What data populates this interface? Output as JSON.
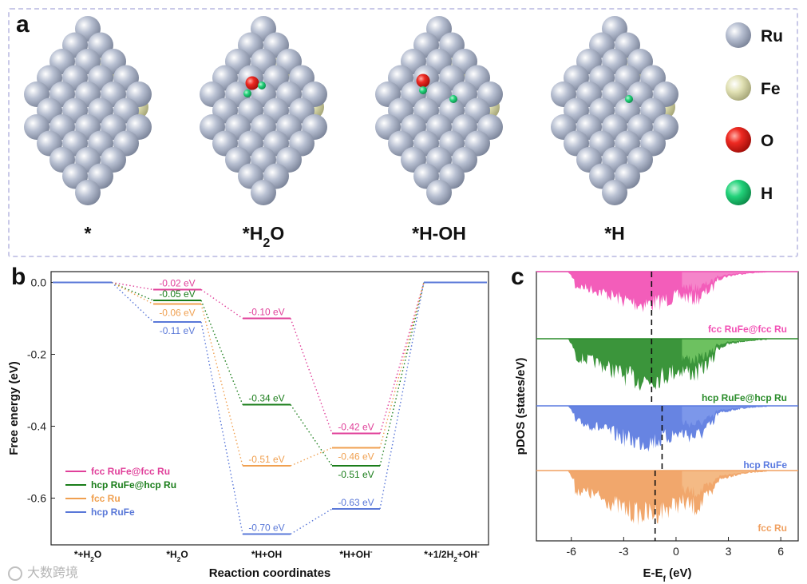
{
  "panel_a": {
    "letter": "a",
    "structures": [
      {
        "label_main": "*",
        "label_sub": ""
      },
      {
        "label_main": "*H",
        "label_sub": "2",
        "label_tail": "O"
      },
      {
        "label_main": "*H-OH",
        "label_sub": ""
      },
      {
        "label_main": "*H",
        "label_sub": ""
      }
    ],
    "legend": [
      {
        "label": "Ru",
        "color": "#9aa3b8"
      },
      {
        "label": "Fe",
        "color": "#d6d6a6"
      },
      {
        "label": "O",
        "color": "#e0201a"
      },
      {
        "label": "H",
        "color": "#1ec870"
      }
    ]
  },
  "panel_b": {
    "letter": "b",
    "chart_data": {
      "type": "line",
      "title": "",
      "xlabel": "Reaction coordinates",
      "ylabel": "Free energy (eV)",
      "ylim": [
        -0.73,
        0.03
      ],
      "yticks": [
        "0.0",
        "-0.2",
        "-0.4",
        "-0.6"
      ],
      "ytick_values": [
        0.0,
        -0.2,
        -0.4,
        -0.6
      ],
      "categories": [
        "*+H2O",
        "*H2O",
        "*H+OH",
        "*H+OH-",
        "*+1/2H2+OH-"
      ],
      "category_labels": [
        {
          "pre": "*+H",
          "sub": "2",
          "post": "O",
          "sup": ""
        },
        {
          "pre": "*H",
          "sub": "2",
          "post": "O",
          "sup": ""
        },
        {
          "pre": "*H+OH",
          "sub": "",
          "post": "",
          "sup": ""
        },
        {
          "pre": "*H+OH",
          "sub": "",
          "post": "",
          "sup": "-"
        },
        {
          "pre": "*+1/2H",
          "sub": "2",
          "post": "+OH",
          "sup": "-"
        }
      ],
      "series": [
        {
          "name": "fcc RuFe@fcc Ru",
          "color": "#e0409a",
          "values": [
            0.0,
            -0.02,
            -0.1,
            -0.42,
            0.0
          ],
          "labels": [
            "",
            "-0.02 eV",
            "-0.10 eV",
            "-0.42 eV",
            ""
          ]
        },
        {
          "name": "hcp RuFe@hcp Ru",
          "color": "#1a7d1a",
          "values": [
            0.0,
            -0.05,
            -0.34,
            -0.51,
            0.0
          ],
          "labels": [
            "",
            "-0.05 eV",
            "-0.34 eV",
            "-0.51 eV",
            ""
          ]
        },
        {
          "name": "fcc Ru",
          "color": "#f0a050",
          "values": [
            0.0,
            -0.06,
            -0.51,
            -0.46,
            0.0
          ],
          "labels": [
            "",
            "-0.06 eV",
            "-0.51 eV",
            "-0.46 eV",
            ""
          ]
        },
        {
          "name": "hcp RuFe",
          "color": "#5a78d8",
          "values": [
            0.0,
            -0.11,
            -0.7,
            -0.63,
            0.0
          ],
          "labels": [
            "",
            "-0.11 eV",
            "-0.70 eV",
            "-0.63 eV",
            ""
          ]
        }
      ],
      "legend_position": "bottom-left"
    }
  },
  "panel_c": {
    "letter": "c",
    "chart_data": {
      "type": "area",
      "xlabel_pre": "E-E",
      "xlabel_sub": "f",
      "xlabel_post": " (eV)",
      "ylabel": "pDOS (states/eV)",
      "xlim": [
        -8,
        7
      ],
      "xticks": [
        -6,
        -3,
        0,
        3,
        6
      ],
      "series": [
        {
          "name": "fcc RuFe@fcc Ru",
          "color": "#f24fb4",
          "light": "#f7a0d6",
          "dband_center": -1.4
        },
        {
          "name": "hcp RuFe@hcp Ru",
          "color": "#2a8c2a",
          "light": "#8fe07a",
          "dband_center": -1.4
        },
        {
          "name": "hcp RuFe",
          "color": "#5a7ae0",
          "light": "#8aa4f0",
          "dband_center": -0.8
        },
        {
          "name": "fcc Ru",
          "color": "#f0a060",
          "light": "#f6c696",
          "dband_center": -1.2
        }
      ]
    }
  },
  "watermark": {
    "text": "大数跨境"
  }
}
